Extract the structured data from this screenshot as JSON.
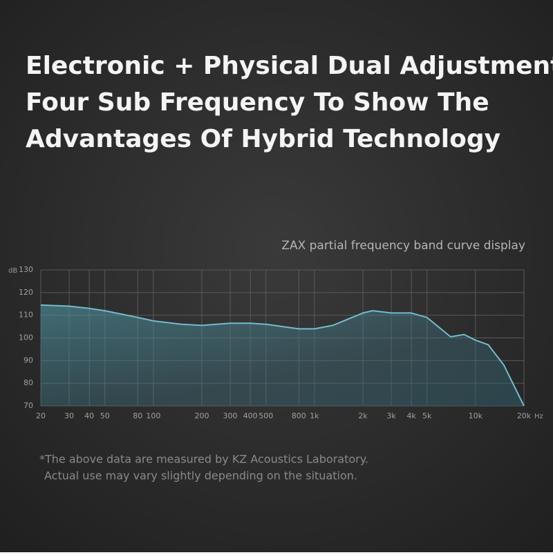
{
  "chart_data": {
    "type": "line",
    "title": [
      "Electronic + Physical Dual Adjustment",
      "Four Sub Frequency To Show The",
      "Advantages Of Hybrid Technology"
    ],
    "subtitle": "ZAX partial frequency band curve display",
    "notes": [
      "*The above data are measured by KZ Acoustics Laboratory.",
      "Actual use may vary slightly depending on the situation."
    ],
    "xlabel": "Hz",
    "ylabel": "dB",
    "xscale": "log",
    "grid": true,
    "xlim": [
      20,
      20000
    ],
    "ylim": [
      70,
      130
    ],
    "xticks": [
      20,
      30,
      40,
      50,
      80,
      100,
      200,
      300,
      400,
      500,
      800,
      {
        "value": 1000,
        "label": "1k"
      },
      {
        "value": 2000,
        "label": "2k"
      },
      {
        "value": 3000,
        "label": "3k"
      },
      {
        "value": 4000,
        "label": "4k"
      },
      {
        "value": 5000,
        "label": "5k"
      },
      {
        "value": 10000,
        "label": "10k"
      },
      {
        "value": 20000,
        "label": "20k"
      }
    ],
    "yticks": [
      70,
      80,
      90,
      100,
      110,
      120,
      130
    ],
    "series": [
      {
        "color": "#72bccb",
        "x": [
          20,
          30,
          40,
          50,
          80,
          100,
          150,
          200,
          300,
          400,
          500,
          800,
          1000,
          1300,
          2000,
          2300,
          3000,
          4000,
          5000,
          7000,
          8500,
          10000,
          12000,
          15000,
          20000
        ],
        "values": [
          114.5,
          114,
          113,
          112,
          109,
          107.5,
          106,
          105.5,
          106.5,
          106.5,
          106,
          104,
          104,
          105.5,
          111,
          112,
          111,
          111,
          109,
          100.5,
          101.5,
          99,
          97,
          88,
          70
        ]
      }
    ]
  }
}
